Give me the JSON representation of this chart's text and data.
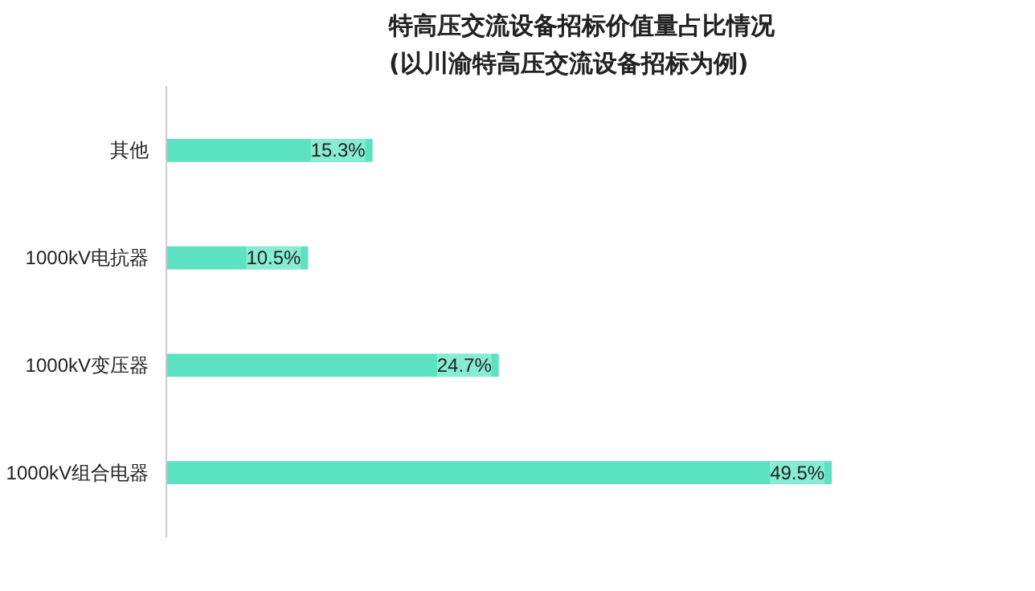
{
  "chart_data": {
    "type": "bar",
    "orientation": "horizontal",
    "title": "特高压交流设备招标价值量占比情况\n(以川渝特高压交流设备招标为例)",
    "categories": [
      "其他",
      "1000kV电抗器",
      "1000kV变压器",
      "1000kV组合电器"
    ],
    "values": [
      15.3,
      10.5,
      24.7,
      49.5
    ],
    "color": "#5ce1c1",
    "value_labels": [
      "15.3%",
      "10.5%",
      "24.7%",
      "49.5%"
    ],
    "grid": false
  }
}
